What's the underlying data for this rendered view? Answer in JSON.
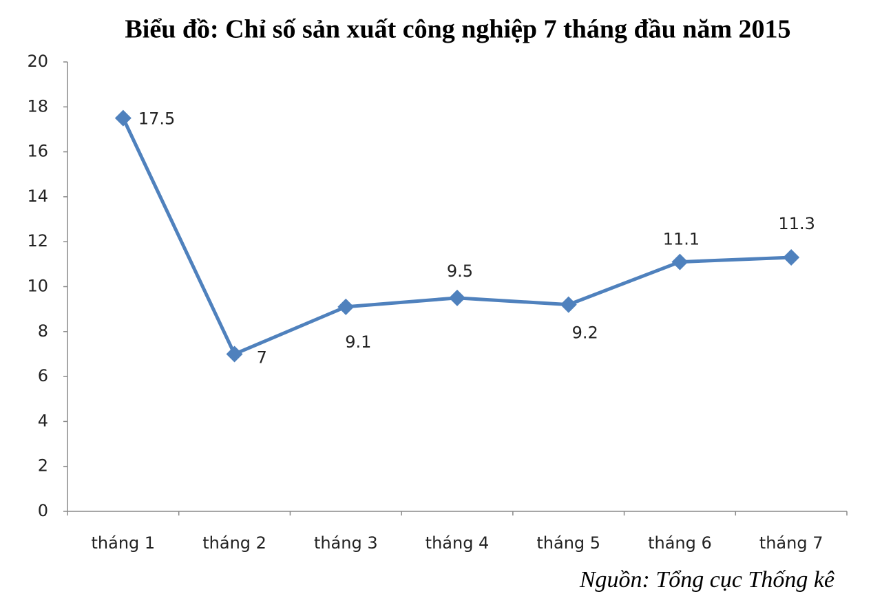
{
  "chart_data": {
    "type": "line",
    "title": "Biểu đồ: Chỉ số sản xuất công nghiệp 7 tháng đầu năm 2015",
    "categories": [
      "tháng 1",
      "tháng 2",
      "tháng 3",
      "tháng 4",
      "tháng 5",
      "tháng 6",
      "tháng 7"
    ],
    "values": [
      17.5,
      7,
      9.1,
      9.5,
      9.2,
      11.1,
      11.3
    ],
    "color": "#4f81bd",
    "ylim": [
      0,
      20
    ],
    "yticks": [
      0,
      2,
      4,
      6,
      8,
      10,
      12,
      14,
      16,
      18,
      20
    ],
    "grid": false,
    "source": "Nguồn: Tổng cục Thống kê"
  }
}
